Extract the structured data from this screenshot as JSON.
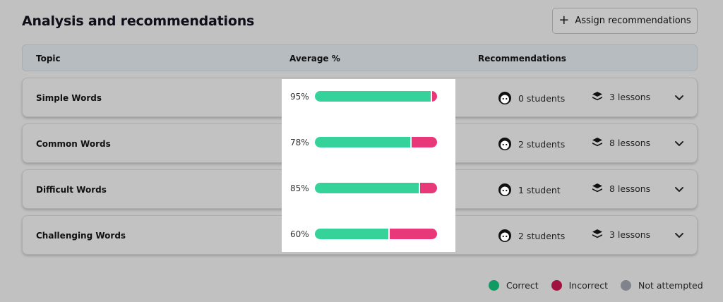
{
  "header": {
    "title": "Analysis and recommendations",
    "assign_label": "Assign recommendations"
  },
  "columns": {
    "topic": "Topic",
    "average": "Average %",
    "recommendations": "Recommendations"
  },
  "rows": [
    {
      "topic": "Simple Words",
      "average_label": "95%",
      "correct": 95,
      "students": "0 students",
      "lessons": "3 lessons"
    },
    {
      "topic": "Common Words",
      "average_label": "78%",
      "correct": 78,
      "students": "2 students",
      "lessons": "8 lessons"
    },
    {
      "topic": "Difficult Words",
      "average_label": "85%",
      "correct": 85,
      "students": "1 student",
      "lessons": "8 lessons"
    },
    {
      "topic": "Challenging Words",
      "average_label": "60%",
      "correct": 60,
      "students": "2 students",
      "lessons": "3 lessons"
    }
  ],
  "legend": {
    "correct": "Correct",
    "incorrect": "Incorrect",
    "not_attempted": "Not attempted"
  },
  "colors": {
    "correct": "#35d39a",
    "incorrect": "#e8387a",
    "legend_correct": "#0f9b63",
    "legend_incorrect": "#a0123f",
    "legend_not_attempted": "#80838b"
  },
  "icons": {
    "assign": "plus-icon",
    "students": "student-face-icon",
    "lessons": "layers-icon",
    "expand": "chevron-down-icon"
  }
}
